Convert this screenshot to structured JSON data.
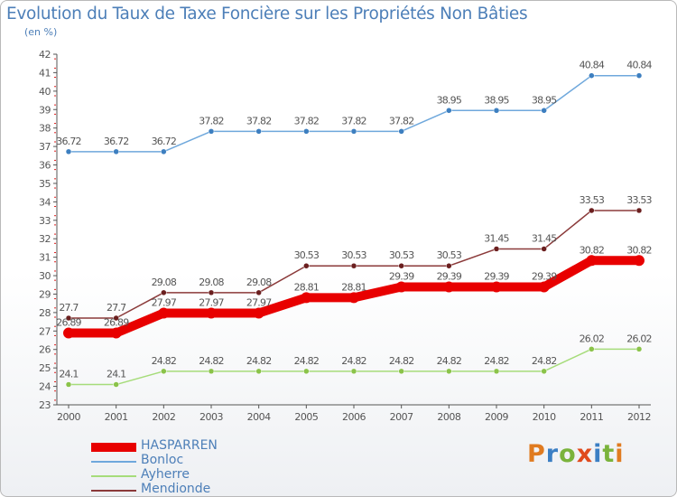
{
  "title": "Evolution du Taux de Taxe Foncière sur les Propriétés Non Bâties",
  "unit_label": "(en %)",
  "logo": {
    "text": "Proxiti",
    "letter_colors": [
      "#e07b20",
      "#3b7fc4",
      "#7ab33b",
      "#e04a1c",
      "#3b7fc4",
      "#7ab33b",
      "#e07b20"
    ]
  },
  "colors": {
    "axis": "#555555",
    "tick_label": "#555555",
    "data_label": "#555555",
    "grid": "#e6e6e6",
    "left_axis_accent": "#e02020"
  },
  "chart_data": {
    "type": "line",
    "title": "Evolution du Taux de Taxe Foncière sur les Propriétés Non Bâties",
    "xlabel": "",
    "ylabel": "(en %)",
    "categories": [
      "2000",
      "2001",
      "2002",
      "2003",
      "2004",
      "2005",
      "2006",
      "2007",
      "2008",
      "2009",
      "2010",
      "2011",
      "2012"
    ],
    "ylim": [
      23,
      42
    ],
    "yticks": [
      "23",
      "24",
      "25",
      "26",
      "27",
      "28",
      "29",
      "30",
      "31",
      "32",
      "33",
      "34",
      "35",
      "36",
      "37",
      "38",
      "39",
      "40",
      "41",
      "42"
    ],
    "legend_position": "bottom-left",
    "series": [
      {
        "name": "HASPARREN",
        "color": "#e80000",
        "marker": "#e80000",
        "style": "thick",
        "values": [
          26.89,
          26.89,
          27.97,
          27.97,
          27.97,
          28.81,
          28.81,
          29.39,
          29.39,
          29.39,
          29.39,
          30.82,
          30.82
        ],
        "labels": [
          "26.89",
          "26.89",
          "27.97",
          "27.97",
          "27.97",
          "28.81",
          "28.81",
          "29.39",
          "29.39",
          "29.39",
          "29.39",
          "30.82",
          "30.82"
        ]
      },
      {
        "name": "Bonloc",
        "color": "#6fa8dc",
        "marker": "#3d7fc0",
        "style": "thin",
        "values": [
          36.72,
          36.72,
          36.72,
          37.82,
          37.82,
          37.82,
          37.82,
          37.82,
          38.95,
          38.95,
          38.95,
          40.84,
          40.84
        ],
        "labels": [
          "36.72",
          "36.72",
          "36.72",
          "37.82",
          "37.82",
          "37.82",
          "37.82",
          "37.82",
          "38.95",
          "38.95",
          "38.95",
          "40.84",
          "40.84"
        ]
      },
      {
        "name": "Ayherre",
        "color": "#a6dc7a",
        "marker": "#8bc34a",
        "style": "thin",
        "values": [
          24.1,
          24.1,
          24.82,
          24.82,
          24.82,
          24.82,
          24.82,
          24.82,
          24.82,
          24.82,
          24.82,
          26.02,
          26.02
        ],
        "labels": [
          "24.1",
          "24.1",
          "24.82",
          "24.82",
          "24.82",
          "24.82",
          "24.82",
          "24.82",
          "24.82",
          "24.82",
          "24.82",
          "26.02",
          "26.02"
        ]
      },
      {
        "name": "Mendionde",
        "color": "#8b3a3a",
        "marker": "#6b1f1f",
        "style": "thin",
        "values": [
          27.7,
          27.7,
          29.08,
          29.08,
          29.08,
          30.53,
          30.53,
          30.53,
          30.53,
          31.45,
          31.45,
          33.53,
          33.53
        ],
        "labels": [
          "27.7",
          "27.7",
          "29.08",
          "29.08",
          "29.08",
          "30.53",
          "30.53",
          "30.53",
          "30.53",
          "31.45",
          "31.45",
          "33.53",
          "33.53"
        ]
      }
    ]
  }
}
